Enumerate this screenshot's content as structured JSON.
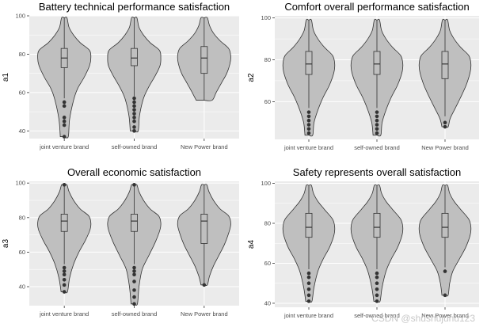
{
  "colors": {
    "panel_bg": "#ebebeb",
    "grid": "#ffffff",
    "violin_fill": "#bfbfbf",
    "violin_stroke": "#333333",
    "outlier": "#333333"
  },
  "watermark": "CSDN @shushujunu123",
  "chart_data": [
    {
      "type": "violin",
      "title": "Battery technical performance satisfaction",
      "ylabel": "a1",
      "xlabel": "",
      "categories": [
        "joint venture brand",
        "self-owned brand",
        "New Power brand"
      ],
      "ylim": [
        36,
        100
      ],
      "yticks": [
        40,
        60,
        80,
        100
      ],
      "grid": true,
      "violins": [
        {
          "min": 37,
          "max": 99,
          "q1": 73,
          "median": 78,
          "q3": 83,
          "whisker_low": 57,
          "whisker_high": 99,
          "outliers": [
            55,
            53,
            47,
            45,
            43,
            37
          ],
          "profile": [
            [
              37,
              0.15
            ],
            [
              46,
              0.2
            ],
            [
              56,
              0.35
            ],
            [
              62,
              0.5
            ],
            [
              68,
              0.75
            ],
            [
              74,
              0.95
            ],
            [
              78,
              1.0
            ],
            [
              82,
              0.95
            ],
            [
              86,
              0.6
            ],
            [
              90,
              0.35
            ],
            [
              94,
              0.18
            ],
            [
              99,
              0.1
            ]
          ]
        },
        {
          "min": 40,
          "max": 99,
          "q1": 74,
          "median": 78,
          "q3": 83,
          "whisker_low": 58,
          "whisker_high": 99,
          "outliers": [
            57,
            55,
            53,
            51,
            49,
            47,
            45,
            42,
            40
          ],
          "profile": [
            [
              40,
              0.15
            ],
            [
              48,
              0.2
            ],
            [
              57,
              0.35
            ],
            [
              63,
              0.55
            ],
            [
              69,
              0.8
            ],
            [
              74,
              0.97
            ],
            [
              78,
              1.0
            ],
            [
              82,
              0.95
            ],
            [
              86,
              0.6
            ],
            [
              90,
              0.35
            ],
            [
              94,
              0.18
            ],
            [
              99,
              0.1
            ]
          ]
        },
        {
          "min": 56,
          "max": 99,
          "q1": 70,
          "median": 78,
          "q3": 84,
          "whisker_low": 56,
          "whisker_high": 99,
          "outliers": [],
          "profile": [
            [
              56,
              0.3
            ],
            [
              60,
              0.45
            ],
            [
              65,
              0.65
            ],
            [
              70,
              0.85
            ],
            [
              75,
              0.97
            ],
            [
              79,
              1.0
            ],
            [
              83,
              0.92
            ],
            [
              87,
              0.6
            ],
            [
              91,
              0.35
            ],
            [
              95,
              0.2
            ],
            [
              99,
              0.12
            ]
          ]
        }
      ]
    },
    {
      "type": "violin",
      "title": "Comfort overall performance satisfaction",
      "ylabel": "a2",
      "xlabel": "",
      "categories": [
        "joint venture brand",
        "self-owned brand",
        "New Power brand"
      ],
      "ylim": [
        42,
        101
      ],
      "yticks": [
        60,
        80,
        100
      ],
      "grid": true,
      "violins": [
        {
          "min": 44,
          "max": 99,
          "q1": 73,
          "median": 78,
          "q3": 84,
          "whisker_low": 57,
          "whisker_high": 99,
          "outliers": [
            55,
            53,
            51,
            49,
            47,
            45
          ],
          "profile": [
            [
              44,
              0.15
            ],
            [
              50,
              0.2
            ],
            [
              56,
              0.35
            ],
            [
              62,
              0.55
            ],
            [
              68,
              0.8
            ],
            [
              74,
              0.97
            ],
            [
              78,
              1.0
            ],
            [
              82,
              0.92
            ],
            [
              86,
              0.6
            ],
            [
              90,
              0.35
            ],
            [
              94,
              0.18
            ],
            [
              99,
              0.1
            ]
          ]
        },
        {
          "min": 44,
          "max": 99,
          "q1": 73,
          "median": 78,
          "q3": 84,
          "whisker_low": 57,
          "whisker_high": 99,
          "outliers": [
            55,
            53,
            51,
            49,
            47,
            45
          ],
          "profile": [
            [
              44,
              0.15
            ],
            [
              50,
              0.2
            ],
            [
              56,
              0.35
            ],
            [
              62,
              0.55
            ],
            [
              68,
              0.8
            ],
            [
              74,
              0.97
            ],
            [
              78,
              1.0
            ],
            [
              82,
              0.92
            ],
            [
              86,
              0.6
            ],
            [
              90,
              0.35
            ],
            [
              94,
              0.18
            ],
            [
              99,
              0.1
            ]
          ]
        },
        {
          "min": 48,
          "max": 99,
          "q1": 71,
          "median": 78,
          "q3": 84,
          "whisker_low": 53,
          "whisker_high": 99,
          "outliers": [
            50,
            48
          ],
          "profile": [
            [
              48,
              0.12
            ],
            [
              52,
              0.2
            ],
            [
              57,
              0.4
            ],
            [
              62,
              0.6
            ],
            [
              68,
              0.82
            ],
            [
              74,
              0.97
            ],
            [
              78,
              1.0
            ],
            [
              82,
              0.92
            ],
            [
              86,
              0.6
            ],
            [
              90,
              0.35
            ],
            [
              94,
              0.18
            ],
            [
              99,
              0.1
            ]
          ]
        }
      ]
    },
    {
      "type": "violin",
      "title": "Overall economic satisfaction",
      "ylabel": "a3",
      "xlabel": "",
      "categories": [
        "joint venture brand",
        "self-owned brand",
        "New Power brand"
      ],
      "ylim": [
        29,
        101
      ],
      "yticks": [
        40,
        60,
        80,
        100
      ],
      "grid": true,
      "violins": [
        {
          "min": 37,
          "max": 99,
          "q1": 72,
          "median": 78,
          "q3": 82,
          "whisker_low": 53,
          "whisker_high": 99,
          "outliers": [
            51,
            49,
            47,
            44,
            41,
            37,
            99
          ],
          "profile": [
            [
              37,
              0.12
            ],
            [
              45,
              0.2
            ],
            [
              53,
              0.35
            ],
            [
              60,
              0.55
            ],
            [
              67,
              0.8
            ],
            [
              73,
              0.97
            ],
            [
              77,
              1.0
            ],
            [
              81,
              0.92
            ],
            [
              85,
              0.6
            ],
            [
              90,
              0.35
            ],
            [
              95,
              0.18
            ],
            [
              99,
              0.1
            ]
          ]
        },
        {
          "min": 30,
          "max": 99,
          "q1": 72,
          "median": 78,
          "q3": 82,
          "whisker_low": 53,
          "whisker_high": 99,
          "outliers": [
            51,
            49,
            47,
            43,
            38,
            34,
            30,
            99
          ],
          "profile": [
            [
              30,
              0.12
            ],
            [
              40,
              0.18
            ],
            [
              50,
              0.3
            ],
            [
              58,
              0.55
            ],
            [
              66,
              0.8
            ],
            [
              73,
              0.97
            ],
            [
              77,
              1.0
            ],
            [
              81,
              0.92
            ],
            [
              85,
              0.6
            ],
            [
              90,
              0.35
            ],
            [
              95,
              0.18
            ],
            [
              99,
              0.1
            ]
          ]
        },
        {
          "min": 41,
          "max": 99,
          "q1": 65,
          "median": 78,
          "q3": 82,
          "whisker_low": 42,
          "whisker_high": 99,
          "outliers": [
            41
          ],
          "profile": [
            [
              41,
              0.12
            ],
            [
              46,
              0.2
            ],
            [
              52,
              0.35
            ],
            [
              58,
              0.55
            ],
            [
              64,
              0.75
            ],
            [
              70,
              0.9
            ],
            [
              76,
              1.0
            ],
            [
              81,
              0.92
            ],
            [
              85,
              0.6
            ],
            [
              90,
              0.35
            ],
            [
              95,
              0.18
            ],
            [
              99,
              0.1
            ]
          ]
        }
      ]
    },
    {
      "type": "violin",
      "title": "Safety represents overall satisfaction",
      "ylabel": "a4",
      "xlabel": "",
      "categories": [
        "joint venture brand",
        "self-owned brand",
        "New Power brand"
      ],
      "ylim": [
        38,
        101
      ],
      "yticks": [
        40,
        60,
        80,
        100
      ],
      "grid": true,
      "violins": [
        {
          "min": 41,
          "max": 99,
          "q1": 73,
          "median": 78,
          "q3": 85,
          "whisker_low": 57,
          "whisker_high": 99,
          "outliers": [
            55,
            53,
            50,
            47,
            44,
            41
          ],
          "profile": [
            [
              41,
              0.12
            ],
            [
              48,
              0.2
            ],
            [
              56,
              0.35
            ],
            [
              62,
              0.55
            ],
            [
              68,
              0.8
            ],
            [
              74,
              0.97
            ],
            [
              78,
              1.0
            ],
            [
              82,
              0.92
            ],
            [
              87,
              0.6
            ],
            [
              91,
              0.35
            ],
            [
              95,
              0.18
            ],
            [
              99,
              0.1
            ]
          ]
        },
        {
          "min": 41,
          "max": 99,
          "q1": 73,
          "median": 78,
          "q3": 85,
          "whisker_low": 57,
          "whisker_high": 99,
          "outliers": [
            55,
            53,
            50,
            47,
            44,
            41
          ],
          "profile": [
            [
              41,
              0.12
            ],
            [
              48,
              0.2
            ],
            [
              56,
              0.35
            ],
            [
              62,
              0.55
            ],
            [
              68,
              0.8
            ],
            [
              74,
              0.97
            ],
            [
              78,
              1.0
            ],
            [
              82,
              0.92
            ],
            [
              87,
              0.6
            ],
            [
              91,
              0.35
            ],
            [
              95,
              0.18
            ],
            [
              99,
              0.1
            ]
          ]
        },
        {
          "min": 44,
          "max": 99,
          "q1": 73,
          "median": 78,
          "q3": 85,
          "whisker_low": 58,
          "whisker_high": 99,
          "outliers": [
            56,
            44
          ],
          "profile": [
            [
              44,
              0.12
            ],
            [
              50,
              0.18
            ],
            [
              56,
              0.3
            ],
            [
              62,
              0.55
            ],
            [
              68,
              0.8
            ],
            [
              74,
              0.97
            ],
            [
              78,
              1.0
            ],
            [
              82,
              0.92
            ],
            [
              87,
              0.6
            ],
            [
              91,
              0.35
            ],
            [
              95,
              0.18
            ],
            [
              99,
              0.1
            ]
          ]
        }
      ]
    }
  ]
}
